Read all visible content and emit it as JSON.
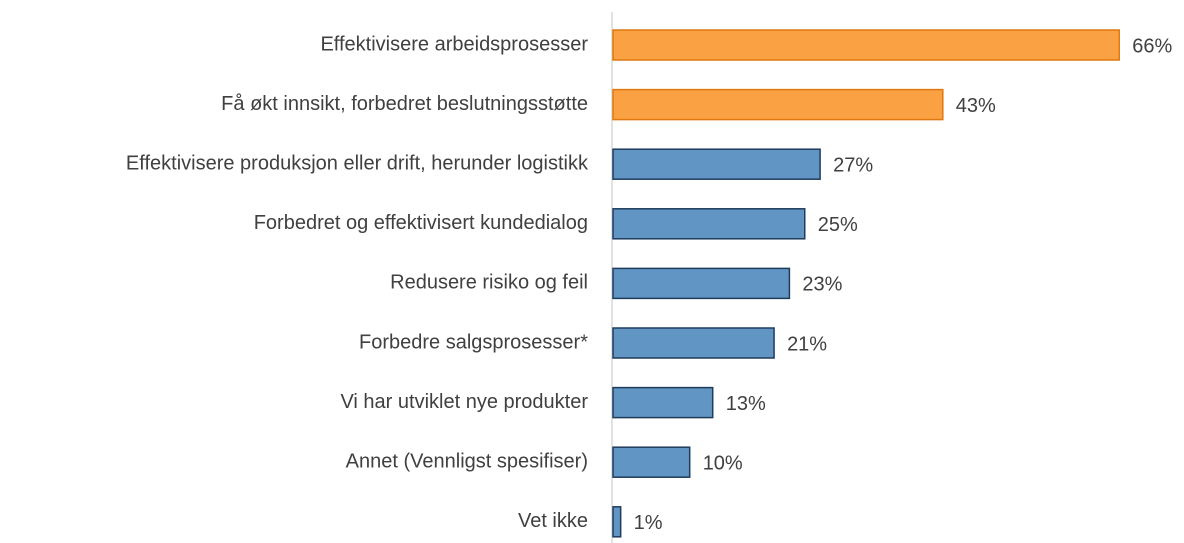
{
  "chart_data": {
    "type": "barh",
    "categories": [
      "Effektivisere arbeidsprosesser",
      "Få økt innsikt, forbedret beslutningsstøtte",
      "Effektivisere produksjon eller drift, herunder logistikk",
      "Forbedret og effektivisert kundedialog",
      "Redusere risiko og feil",
      "Forbedre salgsprosesser*",
      "Vi har utviklet nye produkter",
      "Annet (Vennligst spesifiser)",
      "Vet ikke"
    ],
    "values": [
      66,
      43,
      27,
      25,
      23,
      21,
      13,
      10,
      1
    ],
    "value_labels": [
      "66%",
      "43%",
      "27%",
      "25%",
      "23%",
      "21%",
      "13%",
      "10%",
      "1%"
    ],
    "colors": [
      "#f9a143",
      "#f9a143",
      "#6095c4",
      "#6095c4",
      "#6095c4",
      "#6095c4",
      "#6095c4",
      "#6095c4",
      "#6095c4"
    ],
    "edge_colors": [
      "#e07810",
      "#e07810",
      "#203c5c",
      "#203c5c",
      "#203c5c",
      "#203c5c",
      "#203c5c",
      "#203c5c",
      "#203c5c"
    ]
  }
}
